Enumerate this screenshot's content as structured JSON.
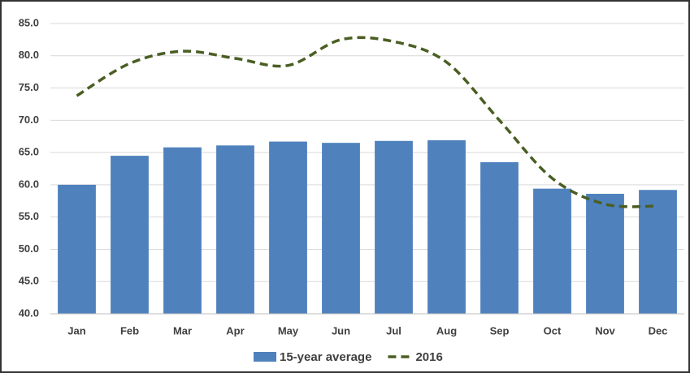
{
  "chart_data": {
    "type": "bar-line",
    "categories": [
      "Jan",
      "Feb",
      "Mar",
      "Apr",
      "May",
      "Jun",
      "Jul",
      "Aug",
      "Sep",
      "Oct",
      "Nov",
      "Dec"
    ],
    "series": [
      {
        "name": "15-year average",
        "type": "bar",
        "color": "#4f81bd",
        "values": [
          60.0,
          64.5,
          65.8,
          66.1,
          66.7,
          66.5,
          66.8,
          66.9,
          63.5,
          59.4,
          58.6,
          59.2
        ]
      },
      {
        "name": "2016",
        "type": "line",
        "color": "#4a5e23",
        "dashed": true,
        "values": [
          73.8,
          78.8,
          80.7,
          79.6,
          78.5,
          82.5,
          82.2,
          79.0,
          70.0,
          61.0,
          57.0,
          56.7
        ]
      }
    ],
    "ylim": [
      40,
      85
    ],
    "yticks": [
      {
        "value": 40,
        "label": "40.0"
      },
      {
        "value": 45,
        "label": "45.0"
      },
      {
        "value": 50,
        "label": "50.0"
      },
      {
        "value": 55,
        "label": "55.0"
      },
      {
        "value": 60,
        "label": "60.0"
      },
      {
        "value": 65,
        "label": "65.0"
      },
      {
        "value": 70,
        "label": "70.0"
      },
      {
        "value": 75,
        "label": "75.0"
      },
      {
        "value": 80,
        "label": "80.0"
      },
      {
        "value": 85,
        "label": "85.0"
      }
    ],
    "grid": true,
    "legend": "bottom"
  }
}
